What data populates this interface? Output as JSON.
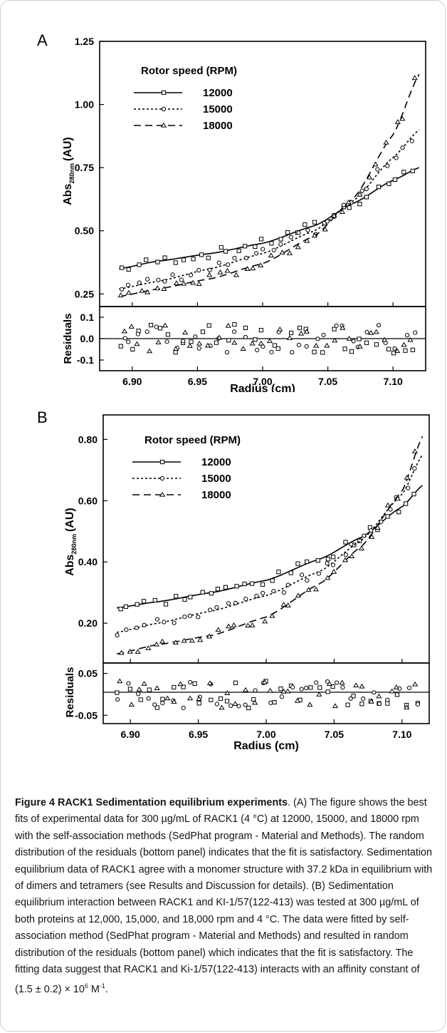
{
  "panels": {
    "A": {
      "letter": "A",
      "legend_title": "Rotor speed (RPM)",
      "ylabel_main": "Abs",
      "ylabel_sub": "280nm",
      "ylabel_unit": "(AU)",
      "resid_label": "Residuals",
      "xlabel": "Radius (cm)"
    },
    "B": {
      "letter": "B",
      "legend_title": "Rotor speed (RPM)",
      "ylabel_main": "Abs",
      "ylabel_sub": "280nm",
      "ylabel_unit": "(AU)",
      "resid_label": "Residuals",
      "xlabel": "Radius (cm)"
    }
  },
  "chart_data": [
    {
      "type": "scatter",
      "panel": "A",
      "xlim": [
        6.875,
        7.125
      ],
      "ylim": [
        0.2,
        1.25
      ],
      "x_ticks": [
        "6.90",
        "6.95",
        "7.00",
        "7.05",
        "7.10"
      ],
      "y_ticks": [
        "0.25",
        "0.50",
        "0.75",
        "1.00",
        "1.25"
      ],
      "resid_ylim": [
        -0.15,
        0.15
      ],
      "resid_ticks": [
        "0.1",
        "0.0",
        "-0.1"
      ],
      "series": [
        {
          "name": "12000",
          "marker": "square",
          "dash": "none",
          "x": [
            6.89,
            6.92,
            6.96,
            7.0,
            7.04,
            7.07,
            7.1,
            7.12
          ],
          "y": [
            0.35,
            0.38,
            0.41,
            0.45,
            0.52,
            0.61,
            0.7,
            0.75
          ]
        },
        {
          "name": "15000",
          "marker": "circle",
          "dash": "3,3",
          "x": [
            6.89,
            6.92,
            6.96,
            7.0,
            7.04,
            7.07,
            7.1,
            7.12
          ],
          "y": [
            0.27,
            0.3,
            0.35,
            0.41,
            0.5,
            0.62,
            0.79,
            0.9
          ]
        },
        {
          "name": "18000",
          "marker": "triangle",
          "dash": "10,6",
          "x": [
            6.89,
            6.92,
            6.96,
            7.0,
            7.04,
            7.07,
            7.1,
            7.12
          ],
          "y": [
            0.24,
            0.27,
            0.31,
            0.37,
            0.48,
            0.63,
            0.88,
            1.12
          ]
        }
      ]
    },
    {
      "type": "scatter",
      "panel": "B",
      "xlim": [
        6.88,
        7.12
      ],
      "ylim": [
        0.07,
        0.88
      ],
      "x_ticks": [
        "6.90",
        "6.95",
        "7.00",
        "7.05",
        "7.10"
      ],
      "y_ticks": [
        "0.20",
        "0.40",
        "0.60",
        "0.80"
      ],
      "resid_ylim": [
        -0.07,
        0.075
      ],
      "resid_ticks": [
        "0.05",
        "-0.05"
      ],
      "series": [
        {
          "name": "12000",
          "marker": "square",
          "dash": "none",
          "x": [
            6.89,
            6.92,
            6.96,
            7.0,
            7.04,
            7.07,
            7.1,
            7.115
          ],
          "y": [
            0.25,
            0.27,
            0.3,
            0.34,
            0.41,
            0.48,
            0.58,
            0.65
          ]
        },
        {
          "name": "15000",
          "marker": "circle",
          "dash": "3,3",
          "x": [
            6.89,
            6.92,
            6.96,
            7.0,
            7.04,
            7.07,
            7.1,
            7.115
          ],
          "y": [
            0.17,
            0.2,
            0.24,
            0.29,
            0.37,
            0.47,
            0.62,
            0.75
          ]
        },
        {
          "name": "18000",
          "marker": "triangle",
          "dash": "10,6",
          "x": [
            6.89,
            6.92,
            6.96,
            7.0,
            7.04,
            7.07,
            7.1,
            7.115
          ],
          "y": [
            0.1,
            0.13,
            0.16,
            0.22,
            0.33,
            0.45,
            0.63,
            0.81
          ]
        }
      ]
    }
  ],
  "caption": {
    "title": "Figure 4 RACK1 Sedimentation equilibrium experiments",
    "body": ". (A) The figure shows the best fits of experimental data for 300 µg/mL of RACK1 (4 °C) at 12000, 15000, and 18000 rpm with the self-association methods (SedPhat program - Material and Methods). The random distribution of the residuals (bottom panel) indicates that the fit is satisfactory. Sedimentation equilibrium data of RACK1 agree with a monomer structure with 37.2 kDa in equilibrium with of dimers and tetramers (see Results and Discussion for details). (B) Sedimentation equilibrium interaction between RACK1 and KI-1/57(122-413) was tested at 300 µg/mL of both proteins at 12,000, 15,000, and 18,000 rpm and 4 °C. The data were fitted by self-association method (SedPhat program - Material and Methods) and resulted in random distribution of the residuals (bottom panel) which indicates that the fit is satisfactory. The fitting data suggest that RACK1 and Ki-1/57(122-413) interacts with an affinity constant of (1.5 ± 0.2) × 10",
    "exponent": "6",
    "unit": " M",
    "unit_exp": "-1",
    "end": "."
  }
}
